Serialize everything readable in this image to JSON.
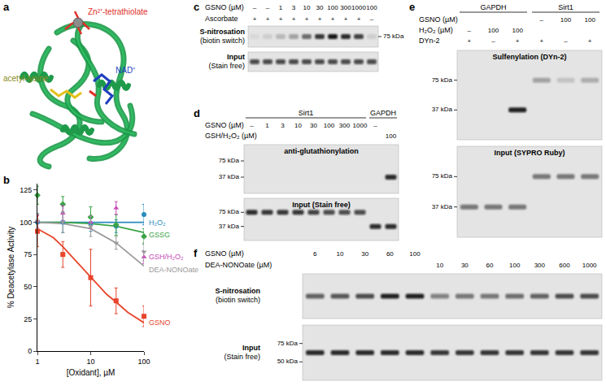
{
  "chart_data": {
    "letter": "b",
    "type": "scatter",
    "log": "x",
    "grid": false,
    "legend": "right",
    "xlabel": "[Oxidant], µM",
    "ylabel": "% Deacetylase Activity",
    "xlim": [
      1,
      100
    ],
    "xticks": [
      1,
      10,
      100
    ],
    "ylim": [
      0,
      130
    ],
    "yticks": [
      0,
      25,
      50,
      75,
      100,
      125
    ],
    "x": [
      1,
      3,
      10,
      30,
      100
    ],
    "series": [
      {
        "name": "H₂O₂",
        "color": "#2b8cbe",
        "marker": "circle",
        "values": [
          100,
          100,
          99,
          97,
          106
        ],
        "errors": [
          6,
          8,
          6,
          5,
          8
        ],
        "fit_x": [
          1,
          100
        ],
        "fit_values": [
          100,
          100
        ]
      },
      {
        "name": "GSSG",
        "color": "#3aa346",
        "marker": "diamond",
        "values": [
          121,
          114,
          104,
          98,
          89
        ],
        "errors": [
          7,
          6,
          8,
          8,
          6
        ],
        "fit_x": [
          1,
          3,
          10,
          30,
          100
        ],
        "fit_values": [
          100,
          100,
          99,
          97,
          92
        ]
      },
      {
        "name": "GSH/H₂O₂",
        "color": "#c64bb8",
        "marker": "triangle-up",
        "values": [
          101,
          107,
          100,
          111,
          73
        ],
        "errors": [
          5,
          6,
          5,
          5,
          5
        ]
      },
      {
        "name": "DEA-NONOate",
        "color": "#9a9a9a",
        "marker": "triangle-down",
        "values": [
          101,
          100,
          97,
          84,
          77
        ],
        "errors": [
          6,
          8,
          8,
          5,
          7
        ],
        "fit_x": [
          1,
          3,
          10,
          30,
          100
        ],
        "fit_values": [
          100,
          99,
          95,
          84,
          66
        ]
      },
      {
        "name": "GSNO",
        "color": "#e8452c",
        "marker": "square",
        "values": [
          93,
          75,
          57,
          39,
          27
        ],
        "errors": [
          12,
          10,
          22,
          10,
          8
        ],
        "fit_x": [
          1,
          2,
          3,
          5,
          10,
          20,
          30,
          50,
          100
        ],
        "fit_values": [
          95,
          88,
          81,
          71,
          57,
          44,
          38,
          30,
          22
        ]
      }
    ]
  },
  "panels": {
    "a": {
      "letter": "a",
      "labels": [
        {
          "text": "Zn²⁺-tetrathiolate",
          "color": "#e0302a"
        },
        {
          "text": "acetyl-lysine",
          "color": "#8a8a1a"
        },
        {
          "text": "NAD⁺",
          "color": "#1f3fbf"
        }
      ]
    },
    "c": {
      "letter": "c",
      "lanes": 10,
      "conditions": [
        {
          "label": "GSNO (µM)",
          "values": [
            "–",
            "–",
            "1",
            "3",
            "10",
            "30",
            "100",
            "300",
            "1000",
            "100"
          ]
        },
        {
          "label": "Ascorbate",
          "values": [
            "+",
            "+",
            "+",
            "+",
            "+",
            "+",
            "+",
            "+",
            "+",
            "–"
          ]
        }
      ],
      "blots": [
        {
          "label": "S-nitrosation",
          "sublabel": "(biotin switch)",
          "markers": [
            "75 kDa"
          ],
          "bands": [
            {
              "intensity": [
                0.05,
                0.1,
                0.2,
                0.3,
                0.55,
                0.8,
                0.95,
                0.85,
                0.75,
                0.1
              ]
            }
          ]
        },
        {
          "label": "Input",
          "sublabel": "(Stain free)",
          "markers": [],
          "bands": [
            {
              "intensity": [
                0.7,
                0.7,
                0.7,
                0.7,
                0.7,
                0.7,
                0.7,
                0.7,
                0.7,
                0.7
              ]
            }
          ]
        }
      ]
    },
    "d": {
      "letter": "d",
      "groups": [
        {
          "label": "Sirt1",
          "lanes": 8
        },
        {
          "label": "GAPDH",
          "lanes": 2
        }
      ],
      "conditions": [
        {
          "label": "GSNO (µM)",
          "values": [
            "–",
            "1",
            "3",
            "10",
            "30",
            "100",
            "300",
            "1000",
            "–",
            null
          ]
        },
        {
          "label": "GSH/H₂O₂ (µM)",
          "values": [
            null,
            null,
            null,
            null,
            null,
            null,
            null,
            null,
            null,
            "100"
          ]
        }
      ],
      "blots": [
        {
          "label": "anti-glutathionylation",
          "markers": [
            "75 kDa",
            "37 kDa"
          ],
          "bands": [
            {
              "at": "37 kDa",
              "intensity": [
                0,
                0,
                0,
                0,
                0,
                0,
                0,
                0,
                0,
                0.85
              ]
            }
          ]
        },
        {
          "label": "Input",
          "sublabel": "(Stain free)",
          "markers": [
            "75 kDa",
            "37 kDa"
          ],
          "bands": [
            {
              "at": "75 kDa",
              "intensity": [
                0.85,
                0.8,
                0.8,
                0.8,
                0.75,
                0.7,
                0.7,
                0.7,
                0,
                0
              ]
            },
            {
              "at": "37 kDa",
              "intensity": [
                0,
                0,
                0,
                0,
                0,
                0,
                0,
                0,
                0.85,
                0.85
              ]
            }
          ]
        }
      ]
    },
    "e": {
      "letter": "e",
      "groups": [
        {
          "label": "GAPDH",
          "lanes": 3
        },
        {
          "label": "Sirt1",
          "lanes": 3
        }
      ],
      "conditions": [
        {
          "label": "GSNO (µM)",
          "values": [
            null,
            null,
            null,
            "–",
            "100",
            "100"
          ]
        },
        {
          "label": "H₂O₂ (µM)",
          "values": [
            "–",
            "100",
            "100",
            null,
            null,
            null
          ]
        },
        {
          "label": "DYn-2",
          "values": [
            "+",
            "–",
            "+",
            "+",
            "–",
            "+"
          ]
        }
      ],
      "blots": [
        {
          "label": "Sulfenylation",
          "sublabel": "(DYn-2)",
          "markers": [
            "75 kDa",
            "37 kDa"
          ],
          "bands": [
            {
              "at": "37 kDa",
              "intensity": [
                0,
                0,
                0.9,
                0,
                0,
                0
              ]
            },
            {
              "at": "75 kDa",
              "intensity": [
                0,
                0,
                0,
                0.3,
                0.15,
                0.25
              ]
            }
          ]
        },
        {
          "label": "Input",
          "sublabel": "(SYPRO Ruby)",
          "markers": [
            "75 kDa",
            "37 kDa"
          ],
          "bands": [
            {
              "at": "75 kDa",
              "intensity": [
                0,
                0,
                0,
                0.5,
                0.5,
                0.5
              ]
            },
            {
              "at": "37 kDa",
              "intensity": [
                0.5,
                0.5,
                0.5,
                0,
                0,
                0
              ]
            }
          ]
        }
      ]
    },
    "f": {
      "letter": "f",
      "lanes": 12,
      "conditions": [
        {
          "label": "GSNO (µM)",
          "values": [
            "6",
            "10",
            "30",
            "60",
            "100",
            null,
            null,
            null,
            null,
            null,
            null,
            null
          ]
        },
        {
          "label": "DEA-NONOate (µM)",
          "values": [
            null,
            null,
            null,
            null,
            null,
            "10",
            "30",
            "60",
            "100",
            "300",
            "600",
            "1000"
          ]
        }
      ],
      "blots": [
        {
          "label": "S-nitrosation",
          "sublabel": "(biotin switch)",
          "markers": [],
          "bands": [
            {
              "intensity": [
                0.6,
                0.65,
                0.7,
                0.9,
                0.9,
                0.45,
                0.5,
                0.5,
                0.55,
                0.6,
                0.7,
                0.7
              ]
            }
          ]
        },
        {
          "label": "Input",
          "sublabel": "(Stain free)",
          "markers": [
            "75 kDa",
            "50 kDa"
          ],
          "bands": [
            {
              "intensity": [
                0.85,
                0.85,
                0.85,
                0.85,
                0.85,
                0.8,
                0.8,
                0.8,
                0.8,
                0.8,
                0.8,
                0.8
              ]
            }
          ]
        }
      ]
    }
  }
}
